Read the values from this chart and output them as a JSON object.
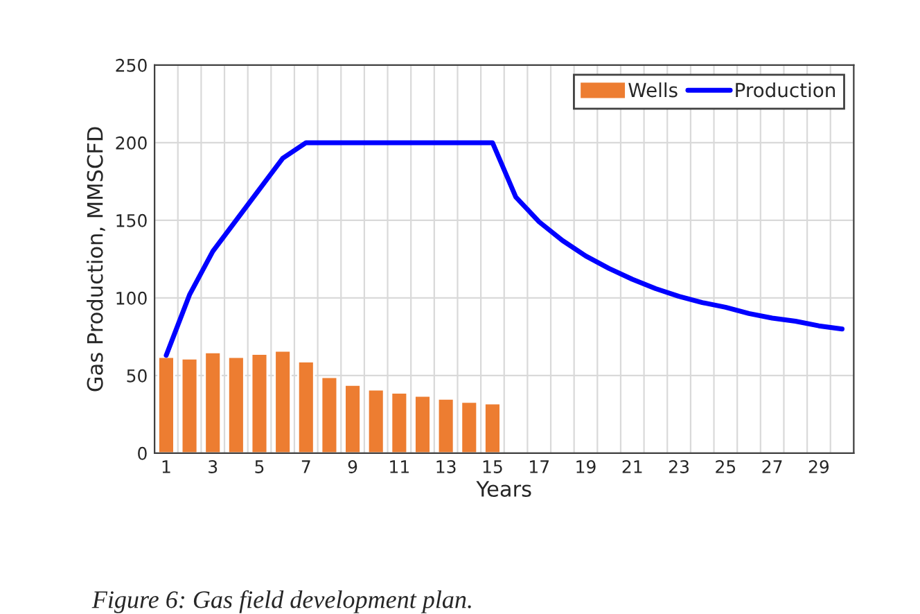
{
  "chart_data": {
    "type": "bar",
    "categories": [
      "1",
      null,
      "3",
      null,
      "5",
      null,
      "7",
      null,
      "9",
      null,
      "11",
      null,
      "13",
      null,
      "15",
      null,
      "17",
      null,
      "19",
      null,
      "21",
      null,
      "23",
      null,
      "25",
      null,
      "27",
      null,
      "29",
      null
    ],
    "series": [
      {
        "name": "Wells",
        "color": "#ed7d31",
        "values": [
          62,
          61,
          65,
          62,
          64,
          66,
          59,
          49,
          44,
          41,
          39,
          37,
          35,
          33,
          32,
          null,
          null,
          null,
          null,
          null,
          null,
          null,
          null,
          null,
          null,
          null,
          null,
          null,
          null,
          null
        ]
      },
      {
        "name": "Production",
        "type": "line",
        "color": "#0000ff",
        "values": [
          63,
          102,
          130,
          150,
          170,
          190,
          200,
          200,
          200,
          200,
          200,
          200,
          200,
          200,
          200,
          165,
          149,
          137,
          127,
          119,
          112,
          106,
          101,
          97,
          94,
          90,
          87,
          85,
          82,
          80
        ]
      }
    ],
    "xlabel": "Years",
    "ylabel": "Gas Production, MMSCFD",
    "ylim": [
      0,
      250
    ],
    "yticks": [
      0,
      50,
      100,
      150,
      200,
      250
    ],
    "grid": true,
    "legend": "top right",
    "marker": "none",
    "line_style": "solid",
    "annotations": [
      "Figure 6: Gas field development plan."
    ]
  }
}
